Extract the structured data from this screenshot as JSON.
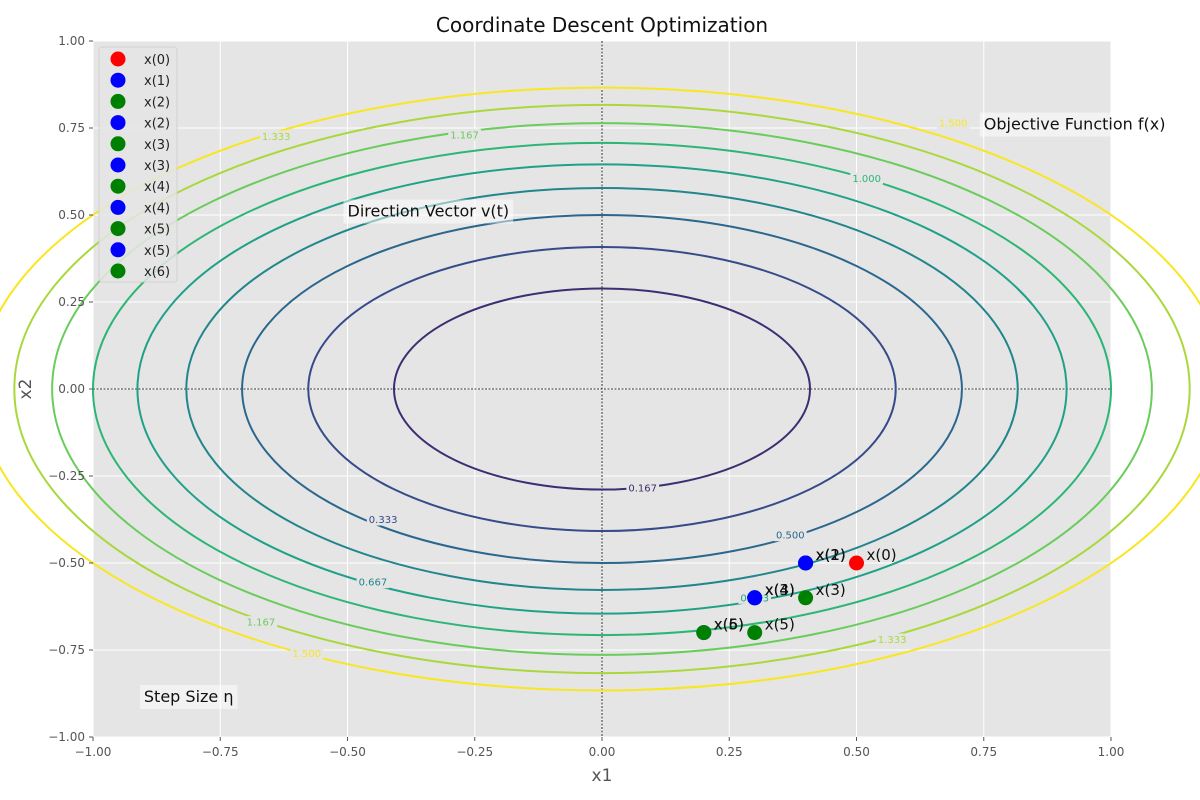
{
  "chart_data": {
    "type": "scatter",
    "title": "Coordinate Descent Optimization",
    "xlabel": "x1",
    "ylabel": "x2",
    "xlim": [
      -1.0,
      1.0
    ],
    "ylim": [
      -1.0,
      1.0
    ],
    "x_ticks": [
      "−1.00",
      "−0.75",
      "−0.50",
      "−0.25",
      "0.00",
      "0.25",
      "0.50",
      "0.75",
      "1.00"
    ],
    "y_ticks": [
      "−1.00",
      "−0.75",
      "−0.50",
      "−0.25",
      "0.00",
      "0.25",
      "0.50",
      "0.75",
      "1.00"
    ],
    "grid": true,
    "background": "#e5e5e5",
    "legend_position": "top-left",
    "contours": {
      "function": "f(x) = x1^2 + 2*x2^2",
      "levels": [
        {
          "value": 0.167,
          "color": "#3f2d72"
        },
        {
          "value": 0.333,
          "color": "#354b8a"
        },
        {
          "value": 0.5,
          "color": "#2b678d"
        },
        {
          "value": 0.667,
          "color": "#21868c"
        },
        {
          "value": 0.833,
          "color": "#1fa188"
        },
        {
          "value": 1.0,
          "color": "#2cb676"
        },
        {
          "value": 1.167,
          "color": "#6acc5c"
        },
        {
          "value": 1.333,
          "color": "#aad83c"
        },
        {
          "value": 1.5,
          "color": "#f8e621"
        }
      ],
      "labels": [
        {
          "text": "0.167",
          "x": 0.08,
          "y": -0.285,
          "color": "#3f2d72"
        },
        {
          "text": "0.333",
          "x": -0.43,
          "y": -0.375,
          "color": "#354b8a"
        },
        {
          "text": "0.500",
          "x": 0.37,
          "y": -0.42,
          "color": "#2b678d"
        },
        {
          "text": "0.667",
          "x": -0.45,
          "y": -0.555,
          "color": "#21868c"
        },
        {
          "text": "0.833",
          "x": 0.3,
          "y": -0.6,
          "color": "#1fa188"
        },
        {
          "text": "1.000",
          "x": 0.52,
          "y": 0.605,
          "color": "#2cb676"
        },
        {
          "text": "1.167",
          "x": -0.67,
          "y": -0.67,
          "color": "#6acc5c"
        },
        {
          "text": "1.167",
          "x": -0.27,
          "y": 0.73,
          "color": "#6acc5c"
        },
        {
          "text": "1.333",
          "x": 0.57,
          "y": -0.72,
          "color": "#aad83c"
        },
        {
          "text": "1.333",
          "x": -0.64,
          "y": 0.725,
          "color": "#aad83c"
        },
        {
          "text": "1.500",
          "x": -0.58,
          "y": -0.76,
          "color": "#f8e621"
        },
        {
          "text": "1.500",
          "x": 0.69,
          "y": 0.765,
          "color": "#f8e621"
        }
      ]
    },
    "series": [
      {
        "name": "x(0)",
        "x": 0.5,
        "y": -0.5,
        "color": "#ff0000"
      },
      {
        "name": "x(1)",
        "x": 0.4,
        "y": -0.5,
        "color": "#0000ff"
      },
      {
        "name": "x(2)",
        "x": 0.4,
        "y": -0.5,
        "color": "#008000"
      },
      {
        "name": "x(2)",
        "x": 0.4,
        "y": -0.5,
        "color": "#0000ff"
      },
      {
        "name": "x(3)",
        "x": 0.4,
        "y": -0.6,
        "color": "#008000"
      },
      {
        "name": "x(3)",
        "x": 0.3,
        "y": -0.6,
        "color": "#0000ff"
      },
      {
        "name": "x(4)",
        "x": 0.3,
        "y": -0.6,
        "color": "#008000"
      },
      {
        "name": "x(4)",
        "x": 0.3,
        "y": -0.6,
        "color": "#0000ff"
      },
      {
        "name": "x(5)",
        "x": 0.3,
        "y": -0.7,
        "color": "#008000"
      },
      {
        "name": "x(5)",
        "x": 0.2,
        "y": -0.7,
        "color": "#0000ff"
      },
      {
        "name": "x(6)",
        "x": 0.2,
        "y": -0.7,
        "color": "#008000"
      }
    ],
    "annotations": [
      {
        "text": "Objective Function f(x)",
        "x": 0.75,
        "y": 0.76
      },
      {
        "text": "Direction Vector v(t)",
        "x": -0.5,
        "y": 0.51
      },
      {
        "text": "Step Size η",
        "x": -0.9,
        "y": -0.885
      }
    ]
  }
}
